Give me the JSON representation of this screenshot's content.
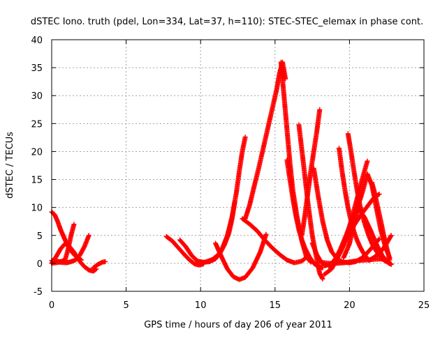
{
  "chart_data": {
    "type": "scatter",
    "title": "dSTEC Iono. truth (pdel, Lon=334, Lat=37, h=110): STEC-STEC_elemax in phase cont.",
    "xlabel": "GPS time / hours of day 206 of year 2011",
    "ylabel": "dSTEC  / TECUs",
    "xlim": [
      0,
      25
    ],
    "ylim": [
      -5,
      40
    ],
    "xticks": [
      0,
      5,
      10,
      15,
      20,
      25
    ],
    "yticks": [
      -5,
      0,
      5,
      10,
      15,
      20,
      25,
      30,
      35,
      40
    ],
    "grid": true,
    "marker": "plus",
    "color": "#ff0000",
    "series": [
      {
        "x": [
          0.0,
          0.2,
          0.4,
          0.6,
          0.8,
          1.0,
          1.2,
          1.4,
          1.6,
          1.8,
          2.0
        ],
        "y": [
          9.2,
          8.7,
          7.5,
          6.0,
          4.8,
          3.6,
          2.7,
          1.9,
          1.3,
          0.9,
          0.6
        ]
      },
      {
        "x": [
          0.0,
          0.3,
          0.6,
          0.9,
          1.2,
          1.5,
          1.7,
          1.9,
          2.2,
          2.5,
          2.8,
          3.0
        ],
        "y": [
          0.0,
          1.2,
          2.6,
          3.5,
          3.0,
          2.0,
          1.1,
          0.3,
          -0.6,
          -1.2,
          -1.4,
          -1.0
        ]
      },
      {
        "x": [
          0.0,
          0.3,
          0.6,
          0.9,
          1.1,
          1.3,
          1.5
        ],
        "y": [
          0.5,
          0.4,
          0.3,
          0.6,
          2.5,
          5.0,
          7.0
        ]
      },
      {
        "x": [
          0.0,
          0.5,
          1.0,
          1.3,
          1.6,
          1.9,
          2.2,
          2.5
        ],
        "y": [
          0.0,
          0.2,
          0.1,
          0.3,
          0.6,
          1.5,
          3.0,
          5.0
        ]
      },
      {
        "x": [
          2.8,
          3.1,
          3.4,
          3.6
        ],
        "y": [
          -0.8,
          -0.2,
          0.2,
          0.3
        ]
      },
      {
        "x": [
          7.7,
          8.1,
          8.5,
          8.9,
          9.3,
          9.6,
          9.9,
          10.2
        ],
        "y": [
          4.8,
          4.0,
          2.8,
          1.6,
          0.5,
          -0.1,
          -0.3,
          -0.1
        ]
      },
      {
        "x": [
          8.6,
          9.0,
          9.4,
          9.8,
          10.2,
          10.6,
          11.0,
          11.4,
          11.8,
          12.1,
          12.4,
          12.6,
          12.8,
          13.0
        ],
        "y": [
          4.2,
          3.0,
          1.4,
          0.4,
          0.2,
          0.3,
          0.8,
          2.3,
          5.0,
          8.2,
          12.6,
          16.5,
          20.0,
          22.6
        ]
      },
      {
        "x": [
          9.8,
          10.3,
          10.8,
          11.3,
          11.6,
          11.9,
          12.1,
          12.3
        ],
        "y": [
          0.0,
          0.2,
          0.7,
          1.8,
          3.3,
          5.4,
          7.8,
          11.0
        ]
      },
      {
        "x": [
          11.0,
          11.4,
          11.8,
          12.2,
          12.6,
          13.0,
          13.5,
          14.0,
          14.4
        ],
        "y": [
          3.6,
          1.2,
          -1.0,
          -2.4,
          -2.9,
          -2.5,
          -0.8,
          2.0,
          5.2
        ]
      },
      {
        "x": [
          13.0,
          13.3,
          13.6,
          13.9,
          14.2,
          14.5,
          14.8,
          15.1,
          15.3,
          15.5,
          15.7
        ],
        "y": [
          8.0,
          10.5,
          13.8,
          17.0,
          20.5,
          24.0,
          27.5,
          31.0,
          34.0,
          36.0,
          33.0
        ]
      },
      {
        "x": [
          12.8,
          13.3,
          13.8,
          14.3,
          14.8,
          15.3,
          15.8,
          16.3,
          16.8,
          17.2
        ],
        "y": [
          8.0,
          7.0,
          5.8,
          4.2,
          2.8,
          1.6,
          0.6,
          0.1,
          0.4,
          1.3
        ]
      },
      {
        "x": [
          15.4,
          15.6,
          15.8,
          16.0,
          16.2,
          16.5,
          16.8,
          17.1,
          17.4
        ],
        "y": [
          36.0,
          30.0,
          24.0,
          18.0,
          13.0,
          8.0,
          4.0,
          1.2,
          0.2
        ]
      },
      {
        "x": [
          15.8,
          16.0,
          16.2,
          16.4,
          16.6,
          16.8,
          17.0,
          17.3,
          17.6,
          17.9,
          18.2
        ],
        "y": [
          18.5,
          15.0,
          11.5,
          8.5,
          6.0,
          4.2,
          2.8,
          1.2,
          0.0,
          -0.6,
          -0.8
        ]
      },
      {
        "x": [
          16.6,
          16.9,
          17.2,
          17.5,
          17.8,
          18.0,
          18.2
        ],
        "y": [
          24.8,
          18.0,
          11.0,
          5.0,
          0.8,
          -1.8,
          -2.8
        ]
      },
      {
        "x": [
          16.8,
          17.0,
          17.2,
          17.4,
          17.6,
          17.8,
          18.0
        ],
        "y": [
          5.0,
          8.5,
          12.5,
          16.5,
          20.0,
          23.5,
          27.5
        ]
      },
      {
        "x": [
          17.5,
          17.8,
          18.1,
          18.4,
          18.8,
          19.2,
          19.6
        ],
        "y": [
          3.6,
          1.6,
          0.2,
          -0.4,
          0.0,
          1.3,
          3.3
        ]
      },
      {
        "x": [
          17.6,
          17.9,
          18.2,
          18.5,
          18.8,
          19.2,
          19.6,
          20.0,
          20.4,
          20.8,
          21.2,
          21.6,
          22.0
        ],
        "y": [
          17.0,
          12.0,
          7.5,
          4.2,
          2.1,
          0.7,
          0.2,
          0.1,
          0.3,
          0.9,
          1.9,
          3.1,
          4.4
        ]
      },
      {
        "x": [
          18.1,
          18.6,
          19.1,
          19.6,
          20.1,
          20.6,
          21.1,
          21.6,
          22.1,
          22.6
        ],
        "y": [
          0.2,
          0.0,
          0.0,
          0.1,
          0.3,
          0.5,
          0.6,
          0.7,
          0.8,
          0.4
        ]
      },
      {
        "x": [
          18.3,
          18.8,
          19.2,
          19.6,
          20.0,
          20.4,
          20.8,
          21.2,
          21.6,
          22.0
        ],
        "y": [
          -2.0,
          -1.0,
          1.0,
          3.2,
          5.5,
          7.2,
          8.8,
          10.2,
          11.6,
          12.4
        ]
      },
      {
        "x": [
          19.3,
          19.5,
          19.7,
          19.9,
          20.1,
          20.3,
          20.5,
          20.7,
          20.9,
          21.1,
          21.3
        ],
        "y": [
          20.6,
          16.5,
          13.0,
          10.0,
          7.6,
          5.7,
          4.2,
          3.0,
          2.0,
          1.2,
          0.6
        ]
      },
      {
        "x": [
          19.9,
          20.1,
          20.3,
          20.5,
          20.7,
          21.0,
          21.3,
          21.6,
          22.0,
          22.4,
          22.8
        ],
        "y": [
          23.2,
          20.0,
          16.5,
          13.2,
          10.4,
          7.3,
          4.9,
          3.0,
          1.4,
          0.4,
          -0.1
        ]
      },
      {
        "x": [
          18.6,
          19.0,
          19.4,
          19.8,
          20.2,
          20.6,
          21.0,
          21.4,
          21.8,
          22.2,
          22.6,
          22.8
        ],
        "y": [
          -0.6,
          0.5,
          2.6,
          5.2,
          8.0,
          9.7,
          8.3,
          6.0,
          3.5,
          1.4,
          0.1,
          -0.2
        ]
      },
      {
        "x": [
          19.0,
          19.4,
          19.8,
          20.2,
          20.6,
          20.9,
          21.2
        ],
        "y": [
          0.4,
          2.0,
          4.8,
          8.5,
          12.5,
          15.5,
          18.3
        ]
      },
      {
        "x": [
          19.6,
          20.0,
          20.3,
          20.6,
          20.9,
          21.2,
          21.5,
          21.8,
          22.1,
          22.4,
          22.7
        ],
        "y": [
          1.0,
          3.5,
          7.0,
          10.5,
          13.0,
          16.0,
          14.0,
          10.0,
          6.0,
          3.0,
          1.0
        ]
      },
      {
        "x": [
          21.3,
          21.6,
          21.9,
          22.2,
          22.5,
          22.8
        ],
        "y": [
          0.5,
          1.0,
          1.6,
          2.4,
          3.6,
          5.0
        ]
      },
      {
        "x": [
          21.5,
          21.7,
          21.9,
          22.1,
          22.3,
          22.5,
          22.7
        ],
        "y": [
          14.5,
          12.5,
          10.0,
          7.6,
          5.0,
          2.8,
          0.6
        ]
      }
    ]
  }
}
